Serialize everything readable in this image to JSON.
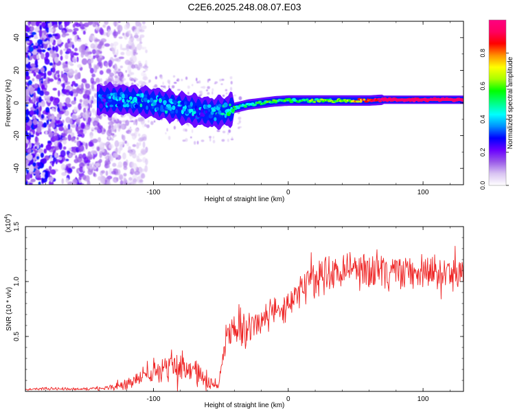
{
  "figure_title": "C2E6.2025.248.08.07.E03",
  "chart_data": [
    {
      "type": "heatmap",
      "title": "C2E6.2025.248.08.07.E03",
      "xlabel": "Height of straight line (km)",
      "ylabel": "Frequency (Hz)",
      "xlim": [
        -195,
        130
      ],
      "ylim": [
        -50,
        50
      ],
      "xticks": [
        -100,
        0,
        100
      ],
      "xtick_labels": [
        "-100",
        "0",
        "100"
      ],
      "yticks": [
        -40,
        -20,
        0,
        20,
        40
      ],
      "ytick_labels": [
        "-40",
        "-20",
        "0",
        "20",
        "40"
      ],
      "colorbar": {
        "label": "Normalized spectral amplitude",
        "range": [
          0.0,
          1.0
        ],
        "ticks": [
          0.0,
          0.2,
          0.4,
          0.6,
          0.8
        ],
        "tick_labels": [
          "0.0",
          "0.2",
          "0.4",
          "0.6",
          "0.8"
        ],
        "colormap": [
          "#ffffff",
          "#d9c4f2",
          "#9a5ae8",
          "#6a00ff",
          "#0000ff",
          "#0090ff",
          "#00ffff",
          "#00ff80",
          "#00ff00",
          "#aaff00",
          "#ffff00",
          "#ff9000",
          "#ff0000",
          "#ff0060",
          "#ff0080"
        ]
      },
      "ridge_frequency_hz": {
        "x": [
          -140,
          -120,
          -100,
          -80,
          -65,
          -55,
          -45,
          -40,
          -30,
          -20,
          -10,
          0,
          20,
          40,
          60,
          70,
          80,
          100,
          130
        ],
        "y": [
          2,
          2,
          0,
          -3,
          -5,
          -6,
          -5,
          -3,
          -1,
          0,
          1,
          1.5,
          1.5,
          1.5,
          1.5,
          2,
          2,
          2,
          2
        ]
      },
      "intensity_profile": {
        "x": [
          -195,
          -140,
          -130,
          -100,
          -60,
          -40,
          -10,
          40,
          70,
          130
        ],
        "value": [
          0.15,
          0.25,
          0.3,
          0.35,
          0.3,
          0.45,
          0.5,
          0.55,
          0.95,
          0.95
        ]
      },
      "noise_region_x": [
        -195,
        -120
      ]
    },
    {
      "type": "line",
      "xlabel": "Height of straight line (km)",
      "ylabel": "SNR (10 * v/v)",
      "y_multiplier_label": "(x10",
      "y_multiplier_exponent": "4",
      "y_multiplier_suffix": ")",
      "xlim": [
        -195,
        130
      ],
      "ylim": [
        0,
        15000
      ],
      "xticks": [
        -100,
        0,
        100
      ],
      "xtick_labels": [
        "-100",
        "0",
        "100"
      ],
      "yticks": [
        5000,
        10000,
        15000
      ],
      "ytick_labels": [
        "0.5",
        "1.0",
        "1.5"
      ],
      "color": "#ee2222",
      "series": [
        {
          "name": "SNR",
          "x": [
            -195,
            -180,
            -160,
            -140,
            -130,
            -120,
            -110,
            -100,
            -90,
            -80,
            -75,
            -70,
            -60,
            -52,
            -48,
            -45,
            -35,
            -30,
            -20,
            -10,
            0,
            5,
            10,
            20,
            30,
            40,
            50,
            60,
            70,
            80,
            90,
            100,
            110,
            120,
            130
          ],
          "y": [
            200,
            250,
            200,
            250,
            400,
            700,
            1200,
            1500,
            2000,
            2500,
            2200,
            2000,
            1000,
            400,
            3500,
            5000,
            5200,
            6000,
            6500,
            7000,
            7500,
            8500,
            9500,
            10200,
            10800,
            11000,
            11200,
            11000,
            11200,
            11000,
            11100,
            11000,
            10800,
            10600,
            10800
          ],
          "noise_amplitude": [
            100,
            150,
            150,
            200,
            300,
            600,
            900,
            1000,
            1200,
            1500,
            1500,
            1300,
            800,
            400,
            1500,
            1800,
            1800,
            1800,
            1700,
            1600,
            1600,
            1500,
            1400,
            1500,
            1600,
            1800,
            1800,
            1800,
            1800,
            1800,
            1600,
            1600,
            1500,
            1500,
            1500
          ]
        }
      ]
    }
  ]
}
